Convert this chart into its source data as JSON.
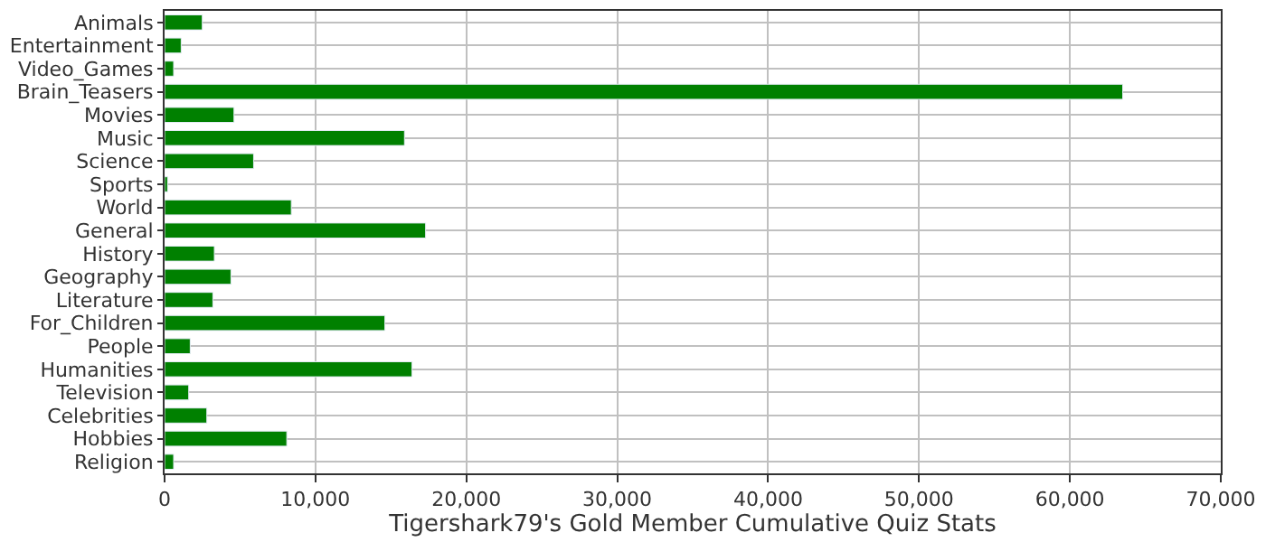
{
  "chart_data": {
    "type": "bar",
    "orientation": "horizontal",
    "xlabel": "Tigershark79's Gold Member Cumulative Quiz Stats",
    "categories": [
      "Animals",
      "Entertainment",
      "Video_Games",
      "Brain_Teasers",
      "Movies",
      "Music",
      "Science",
      "Sports",
      "World",
      "General",
      "History",
      "Geography",
      "Literature",
      "For_Children",
      "People",
      "Humanities",
      "Television",
      "Celebrities",
      "Hobbies",
      "Religion"
    ],
    "values": [
      2500,
      1100,
      600,
      63500,
      4600,
      15900,
      5900,
      200,
      8400,
      17300,
      3300,
      4400,
      3200,
      14600,
      1700,
      16400,
      1600,
      2800,
      8100,
      600
    ],
    "color": "#008000",
    "xlim": [
      0,
      70000
    ],
    "xticks": [
      {
        "value": 0,
        "label": "0"
      },
      {
        "value": 10000,
        "label": "10,000"
      },
      {
        "value": 20000,
        "label": "20,000"
      },
      {
        "value": 30000,
        "label": "30,000"
      },
      {
        "value": 40000,
        "label": "40,000"
      },
      {
        "value": 50000,
        "label": "50,000"
      },
      {
        "value": 60000,
        "label": "60,000"
      },
      {
        "value": 70000,
        "label": "70,000"
      }
    ],
    "grid": true
  }
}
